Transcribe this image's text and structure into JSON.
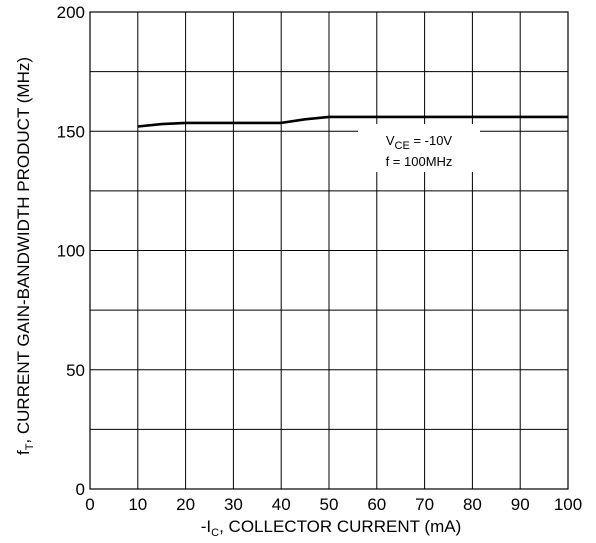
{
  "chart_data": {
    "type": "line",
    "xlabel": {
      "prefix": "-I",
      "sub": "C",
      "rest": ", COLLECTOR CURRENT (mA)"
    },
    "ylabel": {
      "prefix": "f",
      "sub": "T",
      "rest": ", CURRENT GAIN-BANDWIDTH PRODUCT (MHz)"
    },
    "xlim": [
      0,
      100
    ],
    "ylim": [
      0,
      200
    ],
    "xticks": [
      "0",
      "10",
      "20",
      "30",
      "40",
      "50",
      "60",
      "70",
      "80",
      "90",
      "100"
    ],
    "yticks": [
      "0",
      "50",
      "100",
      "150",
      "200"
    ],
    "grid": true,
    "series": [
      {
        "x": [
          10,
          15,
          20,
          25,
          30,
          35,
          40,
          45,
          50,
          60,
          70,
          80,
          90,
          100
        ],
        "y": [
          152,
          153,
          153.5,
          153.5,
          153.5,
          153.5,
          153.5,
          155,
          156,
          156,
          156,
          156,
          156,
          156
        ]
      }
    ],
    "annotations": [
      {
        "prefix": "V",
        "sub": "CE",
        "rest": " = -10V"
      },
      {
        "text": "f = 100MHz"
      }
    ]
  }
}
